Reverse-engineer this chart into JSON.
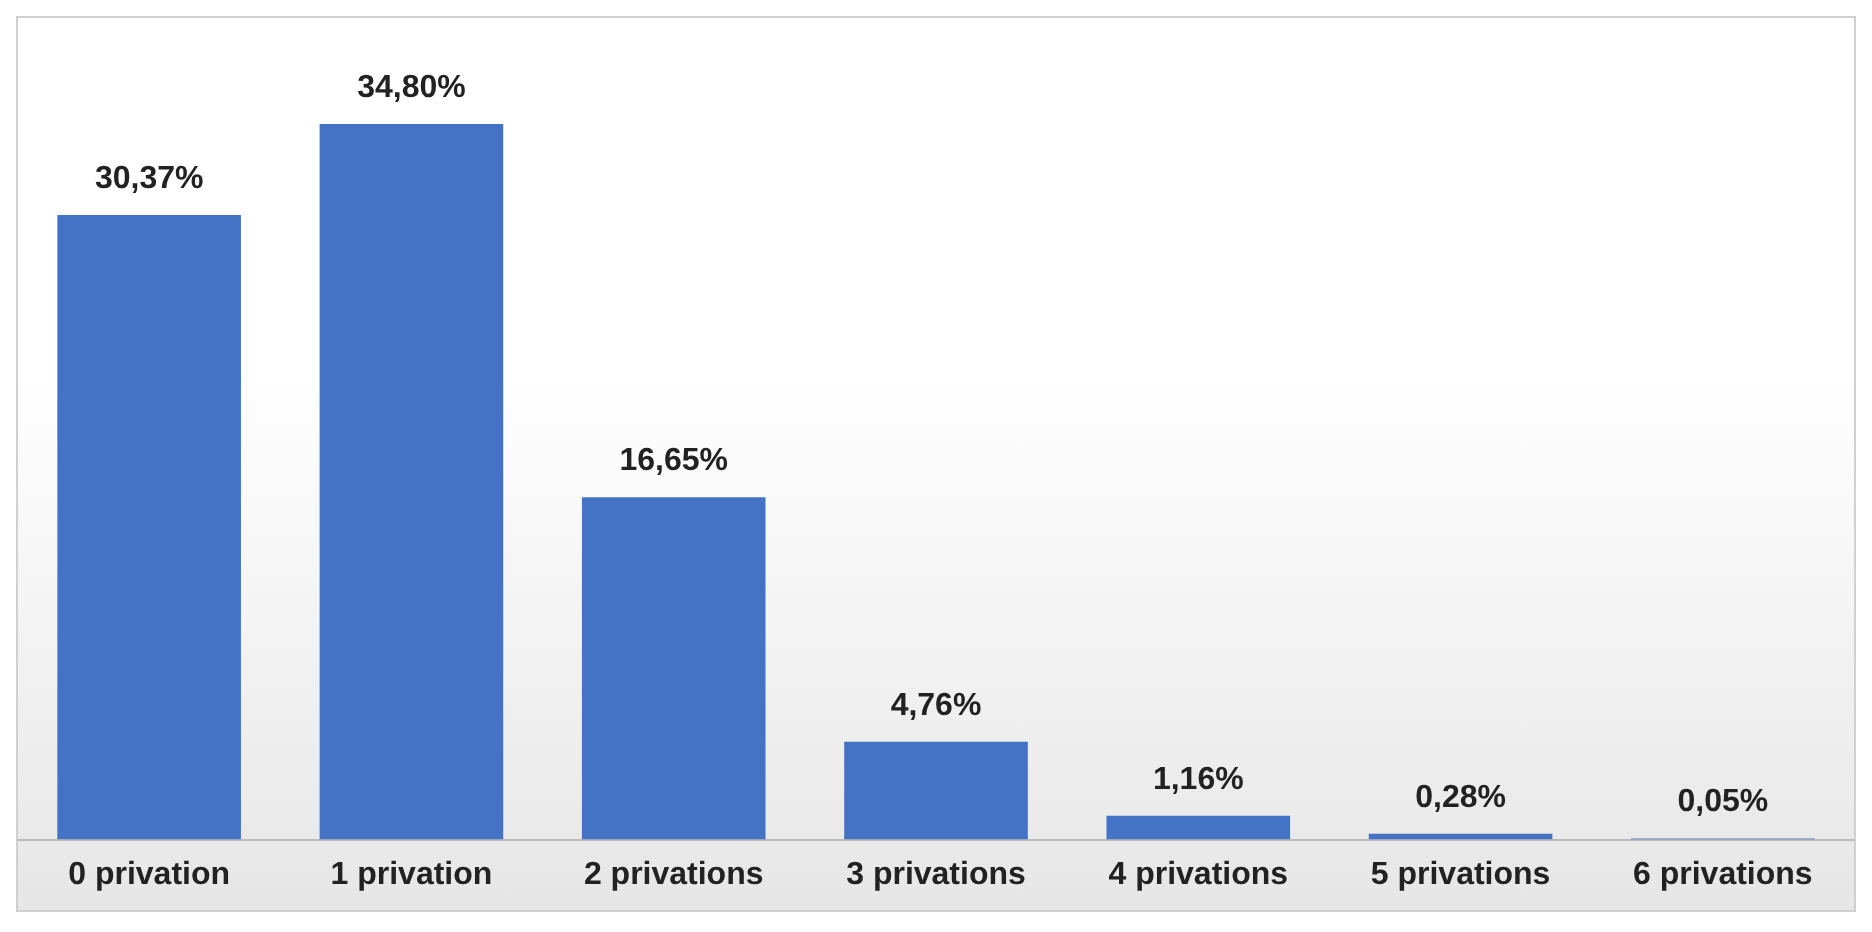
{
  "chart_data": {
    "type": "bar",
    "categories": [
      "0 privation",
      "1 privation",
      "2 privations",
      "3 privations",
      "4 privations",
      "5 privations",
      "6 privations"
    ],
    "values": [
      30.37,
      34.8,
      16.65,
      4.76,
      1.16,
      0.28,
      0.05
    ],
    "value_labels": [
      "30,37%",
      "34,80%",
      "16,65%",
      "4,76%",
      "1,16%",
      "0,28%",
      "0,05%"
    ],
    "color": "#4472c4",
    "grid": false,
    "legend": false
  }
}
